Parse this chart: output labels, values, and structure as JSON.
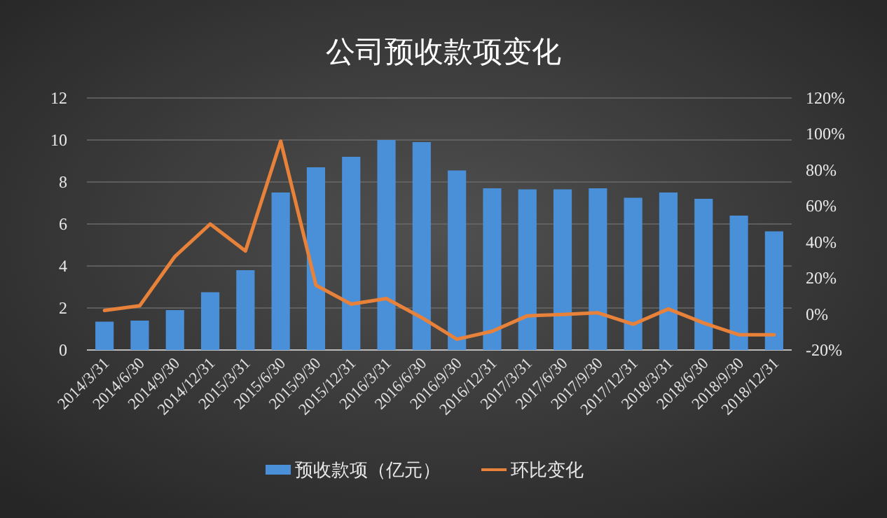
{
  "chart_data": {
    "type": "bar",
    "title": "公司预收款项变化",
    "categories": [
      "2014/3/31",
      "2014/6/30",
      "2014/9/30",
      "2014/12/31",
      "2015/3/31",
      "2015/6/30",
      "2015/9/30",
      "2015/12/31",
      "2016/3/31",
      "2016/6/30",
      "2016/9/30",
      "2016/12/31",
      "2017/3/31",
      "2017/6/30",
      "2017/9/30",
      "2017/12/31",
      "2018/3/31",
      "2018/6/30",
      "2018/9/30",
      "2018/12/31"
    ],
    "series": [
      {
        "name": "预收款项（亿元）",
        "color": "#4a90d9",
        "values": [
          1.35,
          1.4,
          1.9,
          2.75,
          3.8,
          7.5,
          8.7,
          9.2,
          10.0,
          9.9,
          8.55,
          7.7,
          7.65,
          7.65,
          7.7,
          7.25,
          7.5,
          7.2,
          6.4,
          5.65
        ]
      },
      {
        "name": "环比变化",
        "type": "line",
        "axis": "y2",
        "color": "#e8823a",
        "values": [
          2,
          4.6,
          32,
          50,
          35,
          96,
          16,
          5.5,
          8.6,
          -2,
          -14,
          -9.6,
          -1,
          -0.3,
          0.7,
          -5.7,
          2.8,
          -5,
          -11.5,
          -11.5
        ]
      }
    ],
    "ylim": [
      0,
      12
    ],
    "yticks": [
      0,
      2,
      4,
      6,
      8,
      10,
      12
    ],
    "y2lim": [
      -20,
      120
    ],
    "y2ticks": [
      {
        "value": -20,
        "label": "-20%"
      },
      {
        "value": 0,
        "label": "0%"
      },
      {
        "value": 20,
        "label": "20%"
      },
      {
        "value": 40,
        "label": "40%"
      },
      {
        "value": 60,
        "label": "60%"
      },
      {
        "value": 80,
        "label": "80%"
      },
      {
        "value": 100,
        "label": "100%"
      },
      {
        "value": 120,
        "label": "120%"
      }
    ],
    "grid": "y",
    "legend": "bottom",
    "marker": "none"
  }
}
